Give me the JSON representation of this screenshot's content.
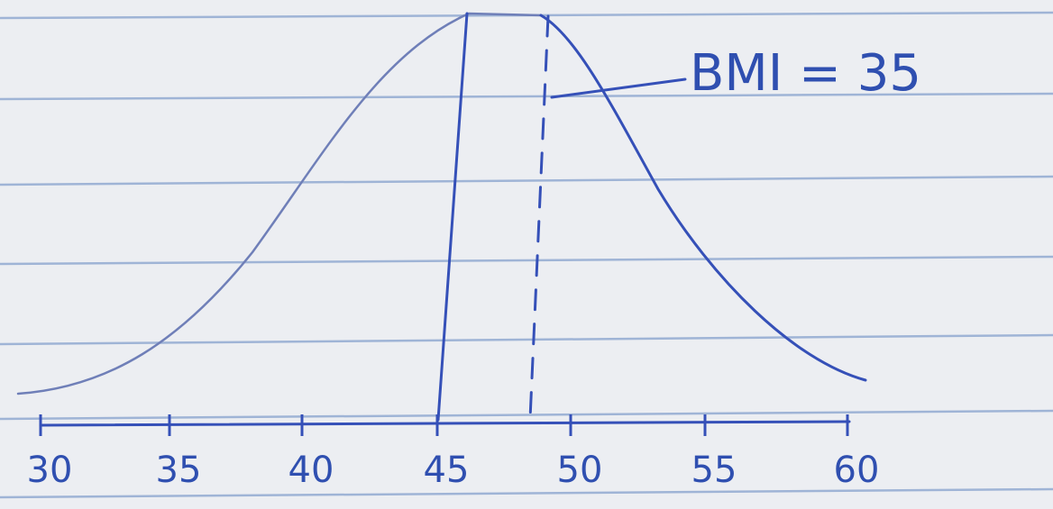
{
  "annotation": "BMI = 35",
  "axis": {
    "labels": [
      "30",
      "35",
      "40",
      "45",
      "50",
      "55",
      "60"
    ]
  }
}
